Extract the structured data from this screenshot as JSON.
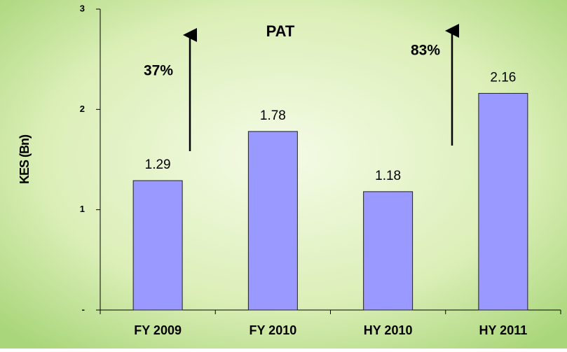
{
  "chart_data": {
    "type": "bar",
    "title": "PAT",
    "y_label": "KES (Bn)",
    "categories": [
      "FY 2009",
      "FY 2010",
      "HY 2010",
      "HY 2011"
    ],
    "values": [
      1.29,
      1.78,
      1.18,
      2.16
    ],
    "color": "#9999ff",
    "ylim": [
      0,
      3
    ],
    "yticks": [
      {
        "value": 0,
        "label": "-"
      },
      1,
      2,
      3
    ],
    "annotations": [
      "37%",
      "83%"
    ]
  }
}
